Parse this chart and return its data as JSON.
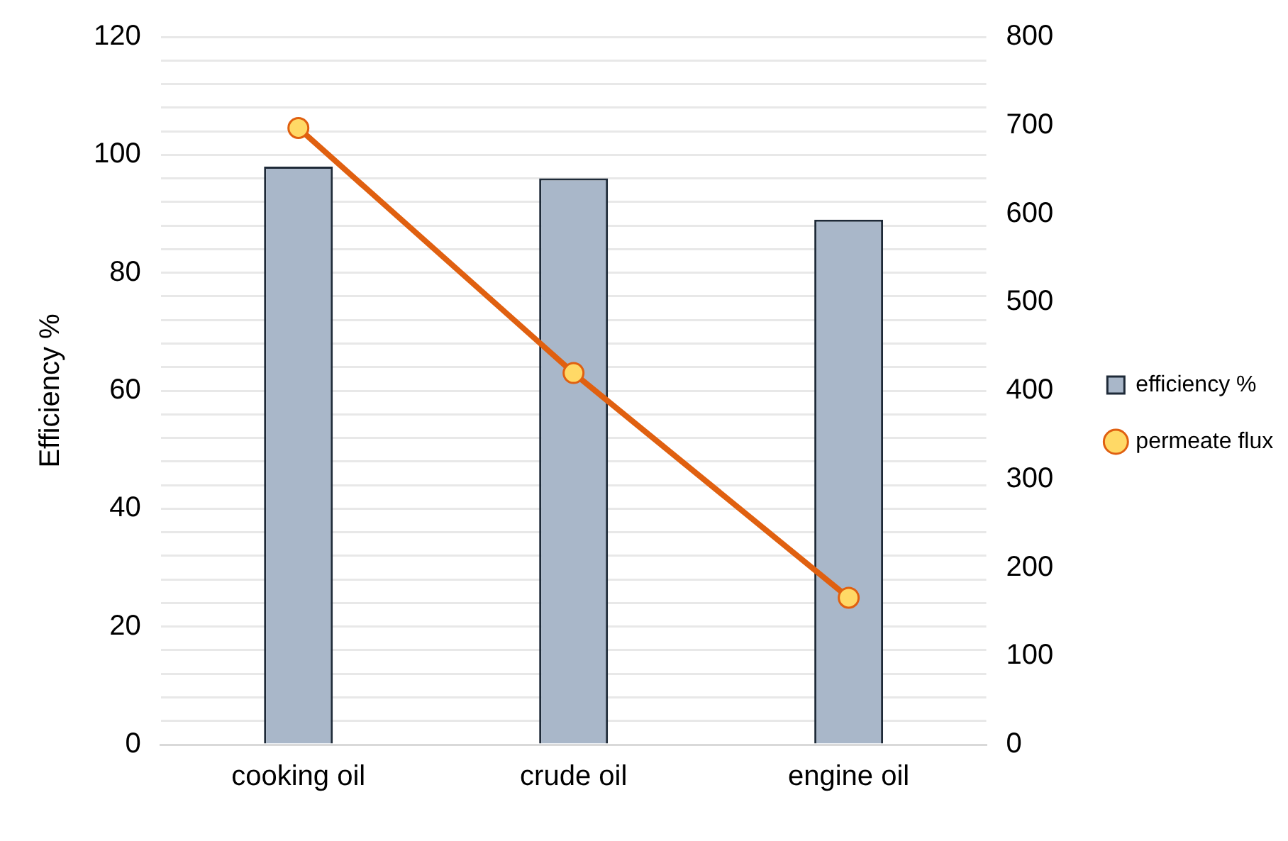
{
  "chart_data": {
    "type": "bar",
    "categories": [
      "cooking oil",
      "crude oil",
      "engine oil"
    ],
    "ylabel": "Efficiency %",
    "series": [
      {
        "name": "efficiency %",
        "color": "#a9b7c9",
        "values": [
          98,
          96,
          89
        ]
      },
      {
        "name": "permeate flux",
        "type": "line",
        "axis": "y2",
        "color": "#e06010",
        "values": [
          697,
          420,
          166
        ]
      }
    ],
    "ylim": [
      0,
      120
    ],
    "yticks": [
      0,
      {
        "value": 4,
        "label": null
      },
      {
        "value": 8,
        "label": null
      },
      {
        "value": 12,
        "label": null
      },
      {
        "value": 16,
        "label": null
      },
      20,
      {
        "value": 24,
        "label": null
      },
      {
        "value": 28,
        "label": null
      },
      {
        "value": 32,
        "label": null
      },
      {
        "value": 36,
        "label": null
      },
      40,
      {
        "value": 44,
        "label": null
      },
      {
        "value": 48,
        "label": null
      },
      {
        "value": 52,
        "label": null
      },
      {
        "value": 56,
        "label": null
      },
      60,
      {
        "value": 64,
        "label": null
      },
      {
        "value": 68,
        "label": null
      },
      {
        "value": 72,
        "label": null
      },
      {
        "value": 76,
        "label": null
      },
      80,
      {
        "value": 84,
        "label": null
      },
      {
        "value": 88,
        "label": null
      },
      {
        "value": 92,
        "label": null
      },
      {
        "value": 96,
        "label": null
      },
      100,
      {
        "value": 104,
        "label": null
      },
      {
        "value": 108,
        "label": null
      },
      {
        "value": 112,
        "label": null
      },
      {
        "value": 116,
        "label": null
      },
      120
    ],
    "y2lim": [
      0,
      800
    ],
    "y2ticks": [
      0,
      100,
      200,
      300,
      400,
      500,
      600,
      700,
      800
    ],
    "grid": "y",
    "legend": "right",
    "marker": "circle"
  }
}
